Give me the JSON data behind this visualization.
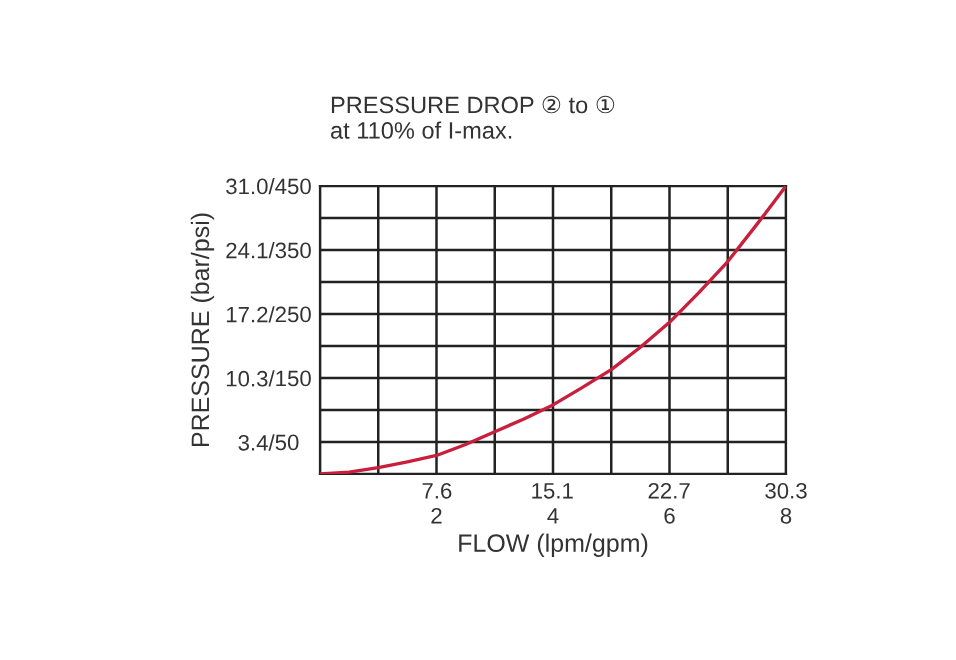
{
  "chart_data": {
    "type": "line",
    "title": "PRESSURE DROP ② to ①\nat 110% of I-max.",
    "xlabel": "FLOW (lpm/gpm)",
    "ylabel": "PRESSURE (bar/psi)",
    "x": [
      0,
      0.5,
      1,
      1.5,
      2,
      2.5,
      3,
      3.5,
      4,
      4.5,
      5,
      5.5,
      6,
      6.5,
      7,
      7.5,
      8
    ],
    "series": [
      {
        "color": "#c8203c",
        "axis": "y2",
        "values": [
          0,
          3,
          10,
          19,
          29,
          46,
          66,
          86,
          108,
          135,
          163,
          198,
          237,
          283,
          332,
          390,
          450
        ]
      }
    ],
    "xlim": [
      0,
      8
    ],
    "xticks": [
      {
        "value": 0,
        "label": null
      },
      {
        "value": 1,
        "label": null
      },
      2,
      {
        "value": 3,
        "label": null
      },
      4,
      {
        "value": 5,
        "label": null
      },
      6,
      {
        "value": 7,
        "label": null
      },
      8
    ],
    "x2lim": [
      0,
      30.3
    ],
    "x2ticks": [
      7.6,
      15.1,
      22.7,
      30.3
    ],
    "ylim": [
      0,
      31.0
    ],
    "yticks": [
      {
        "value": 3.4,
        "label": "3.4/"
      },
      {
        "value": 10.3,
        "label": "10.3/"
      },
      {
        "value": 17.2,
        "label": "17.2/"
      },
      {
        "value": 24.1,
        "label": "24.1/"
      },
      {
        "value": 31.0,
        "label": "31.0/"
      }
    ],
    "y2lim": [
      0,
      450
    ],
    "y2ticks": [
      {
        "value": 0,
        "label": null
      },
      50,
      {
        "value": 100,
        "label": null
      },
      150,
      {
        "value": 200,
        "label": null
      },
      250,
      {
        "value": 300,
        "label": null
      },
      350,
      {
        "value": 400,
        "label": null
      },
      450
    ],
    "grid": true,
    "marker": "none",
    "line_style": "solid"
  }
}
